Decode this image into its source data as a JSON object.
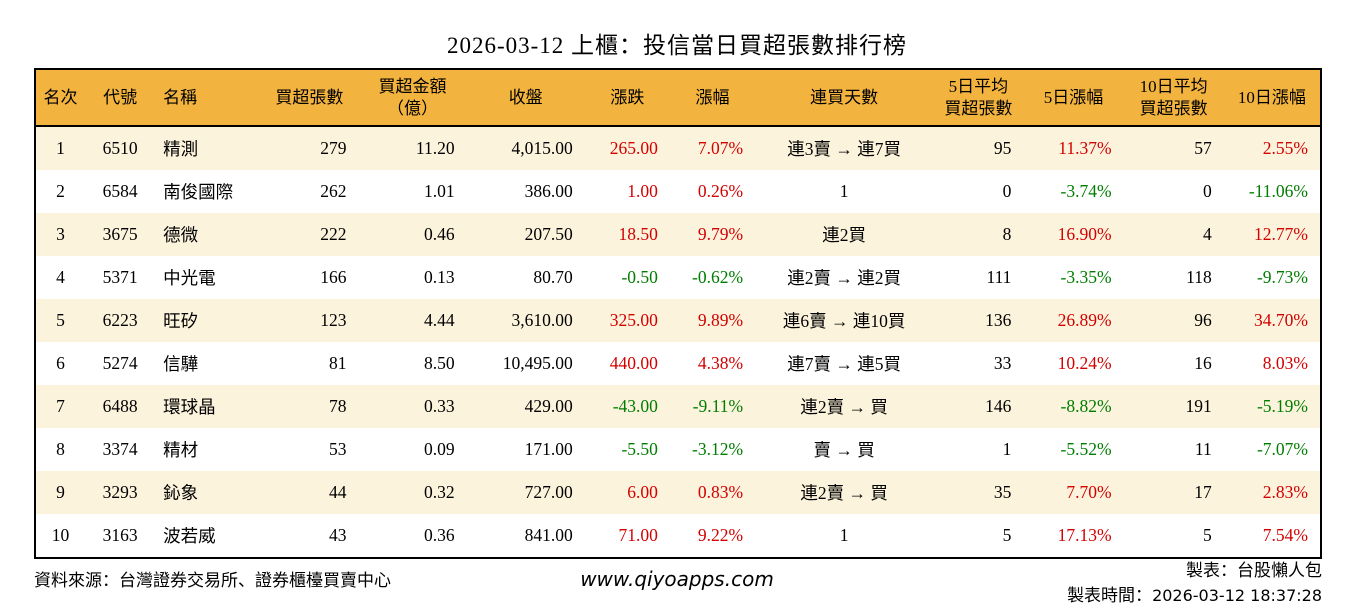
{
  "title": "2026-03-12 上櫃：投信當日買超張數排行榜",
  "colors": {
    "header_bg": "#f3b43f",
    "row_alt_bg": "#fcf3dc",
    "up_red": "#d30000",
    "down_green": "#007d00",
    "border": "#000000"
  },
  "table": {
    "columns": [
      {
        "key": "rank",
        "label": "名次",
        "align": "center",
        "type": "plain"
      },
      {
        "key": "code",
        "label": "代號",
        "align": "center",
        "type": "plain"
      },
      {
        "key": "name",
        "label": "名稱",
        "align": "left",
        "type": "plain"
      },
      {
        "key": "net_buy_lots",
        "label": "買超張數",
        "align": "right",
        "type": "plain"
      },
      {
        "key": "net_buy_amt",
        "label": "買超金額\n（億）",
        "align": "right",
        "type": "plain"
      },
      {
        "key": "close",
        "label": "收盤",
        "align": "right",
        "type": "plain"
      },
      {
        "key": "change",
        "label": "漲跌",
        "align": "right",
        "type": "signed"
      },
      {
        "key": "change_pct",
        "label": "漲幅",
        "align": "right",
        "type": "signed"
      },
      {
        "key": "streak",
        "label": "連買天數",
        "align": "center",
        "type": "plain"
      },
      {
        "key": "avg5",
        "label": "5日平均\n買超張數",
        "align": "right",
        "type": "plain"
      },
      {
        "key": "pct5",
        "label": "5日漲幅",
        "align": "right",
        "type": "signed"
      },
      {
        "key": "avg10",
        "label": "10日平均\n買超張數",
        "align": "right",
        "type": "plain"
      },
      {
        "key": "pct10",
        "label": "10日漲幅",
        "align": "right",
        "type": "signed"
      }
    ],
    "rows": [
      {
        "rank": "1",
        "code": "6510",
        "name": "精測",
        "net_buy_lots": "279",
        "net_buy_amt": "11.20",
        "close": "4,015.00",
        "change": "265.00",
        "change_pct": "7.07%",
        "streak": "連3賣 → 連7買",
        "avg5": "95",
        "pct5": "11.37%",
        "avg10": "57",
        "pct10": "2.55%"
      },
      {
        "rank": "2",
        "code": "6584",
        "name": "南俊國際",
        "net_buy_lots": "262",
        "net_buy_amt": "1.01",
        "close": "386.00",
        "change": "1.00",
        "change_pct": "0.26%",
        "streak": "1",
        "avg5": "0",
        "pct5": "-3.74%",
        "avg10": "0",
        "pct10": "-11.06%"
      },
      {
        "rank": "3",
        "code": "3675",
        "name": "德微",
        "net_buy_lots": "222",
        "net_buy_amt": "0.46",
        "close": "207.50",
        "change": "18.50",
        "change_pct": "9.79%",
        "streak": "連2買",
        "avg5": "8",
        "pct5": "16.90%",
        "avg10": "4",
        "pct10": "12.77%"
      },
      {
        "rank": "4",
        "code": "5371",
        "name": "中光電",
        "net_buy_lots": "166",
        "net_buy_amt": "0.13",
        "close": "80.70",
        "change": "-0.50",
        "change_pct": "-0.62%",
        "streak": "連2賣 → 連2買",
        "avg5": "111",
        "pct5": "-3.35%",
        "avg10": "118",
        "pct10": "-9.73%"
      },
      {
        "rank": "5",
        "code": "6223",
        "name": "旺矽",
        "net_buy_lots": "123",
        "net_buy_amt": "4.44",
        "close": "3,610.00",
        "change": "325.00",
        "change_pct": "9.89%",
        "streak": "連6賣 → 連10買",
        "avg5": "136",
        "pct5": "26.89%",
        "avg10": "96",
        "pct10": "34.70%"
      },
      {
        "rank": "6",
        "code": "5274",
        "name": "信驊",
        "net_buy_lots": "81",
        "net_buy_amt": "8.50",
        "close": "10,495.00",
        "change": "440.00",
        "change_pct": "4.38%",
        "streak": "連7賣 → 連5買",
        "avg5": "33",
        "pct5": "10.24%",
        "avg10": "16",
        "pct10": "8.03%"
      },
      {
        "rank": "7",
        "code": "6488",
        "name": "環球晶",
        "net_buy_lots": "78",
        "net_buy_amt": "0.33",
        "close": "429.00",
        "change": "-43.00",
        "change_pct": "-9.11%",
        "streak": "連2賣 → 買",
        "avg5": "146",
        "pct5": "-8.82%",
        "avg10": "191",
        "pct10": "-5.19%"
      },
      {
        "rank": "8",
        "code": "3374",
        "name": "精材",
        "net_buy_lots": "53",
        "net_buy_amt": "0.09",
        "close": "171.00",
        "change": "-5.50",
        "change_pct": "-3.12%",
        "streak": "賣 → 買",
        "avg5": "1",
        "pct5": "-5.52%",
        "avg10": "11",
        "pct10": "-7.07%"
      },
      {
        "rank": "9",
        "code": "3293",
        "name": "鈊象",
        "net_buy_lots": "44",
        "net_buy_amt": "0.32",
        "close": "727.00",
        "change": "6.00",
        "change_pct": "0.83%",
        "streak": "連2賣 → 買",
        "avg5": "35",
        "pct5": "7.70%",
        "avg10": "17",
        "pct10": "2.83%"
      },
      {
        "rank": "10",
        "code": "3163",
        "name": "波若威",
        "net_buy_lots": "43",
        "net_buy_amt": "0.36",
        "close": "841.00",
        "change": "71.00",
        "change_pct": "9.22%",
        "streak": "1",
        "avg5": "5",
        "pct5": "17.13%",
        "avg10": "5",
        "pct10": "7.54%"
      }
    ]
  },
  "footer": {
    "source": "資料來源：台灣證券交易所、證券櫃檯買賣中心",
    "website": "www.qiyoapps.com",
    "made_by": "製表：台股懶人包",
    "time_label": "製表時間：",
    "time_value": "2026-03-12 18:37:28"
  }
}
